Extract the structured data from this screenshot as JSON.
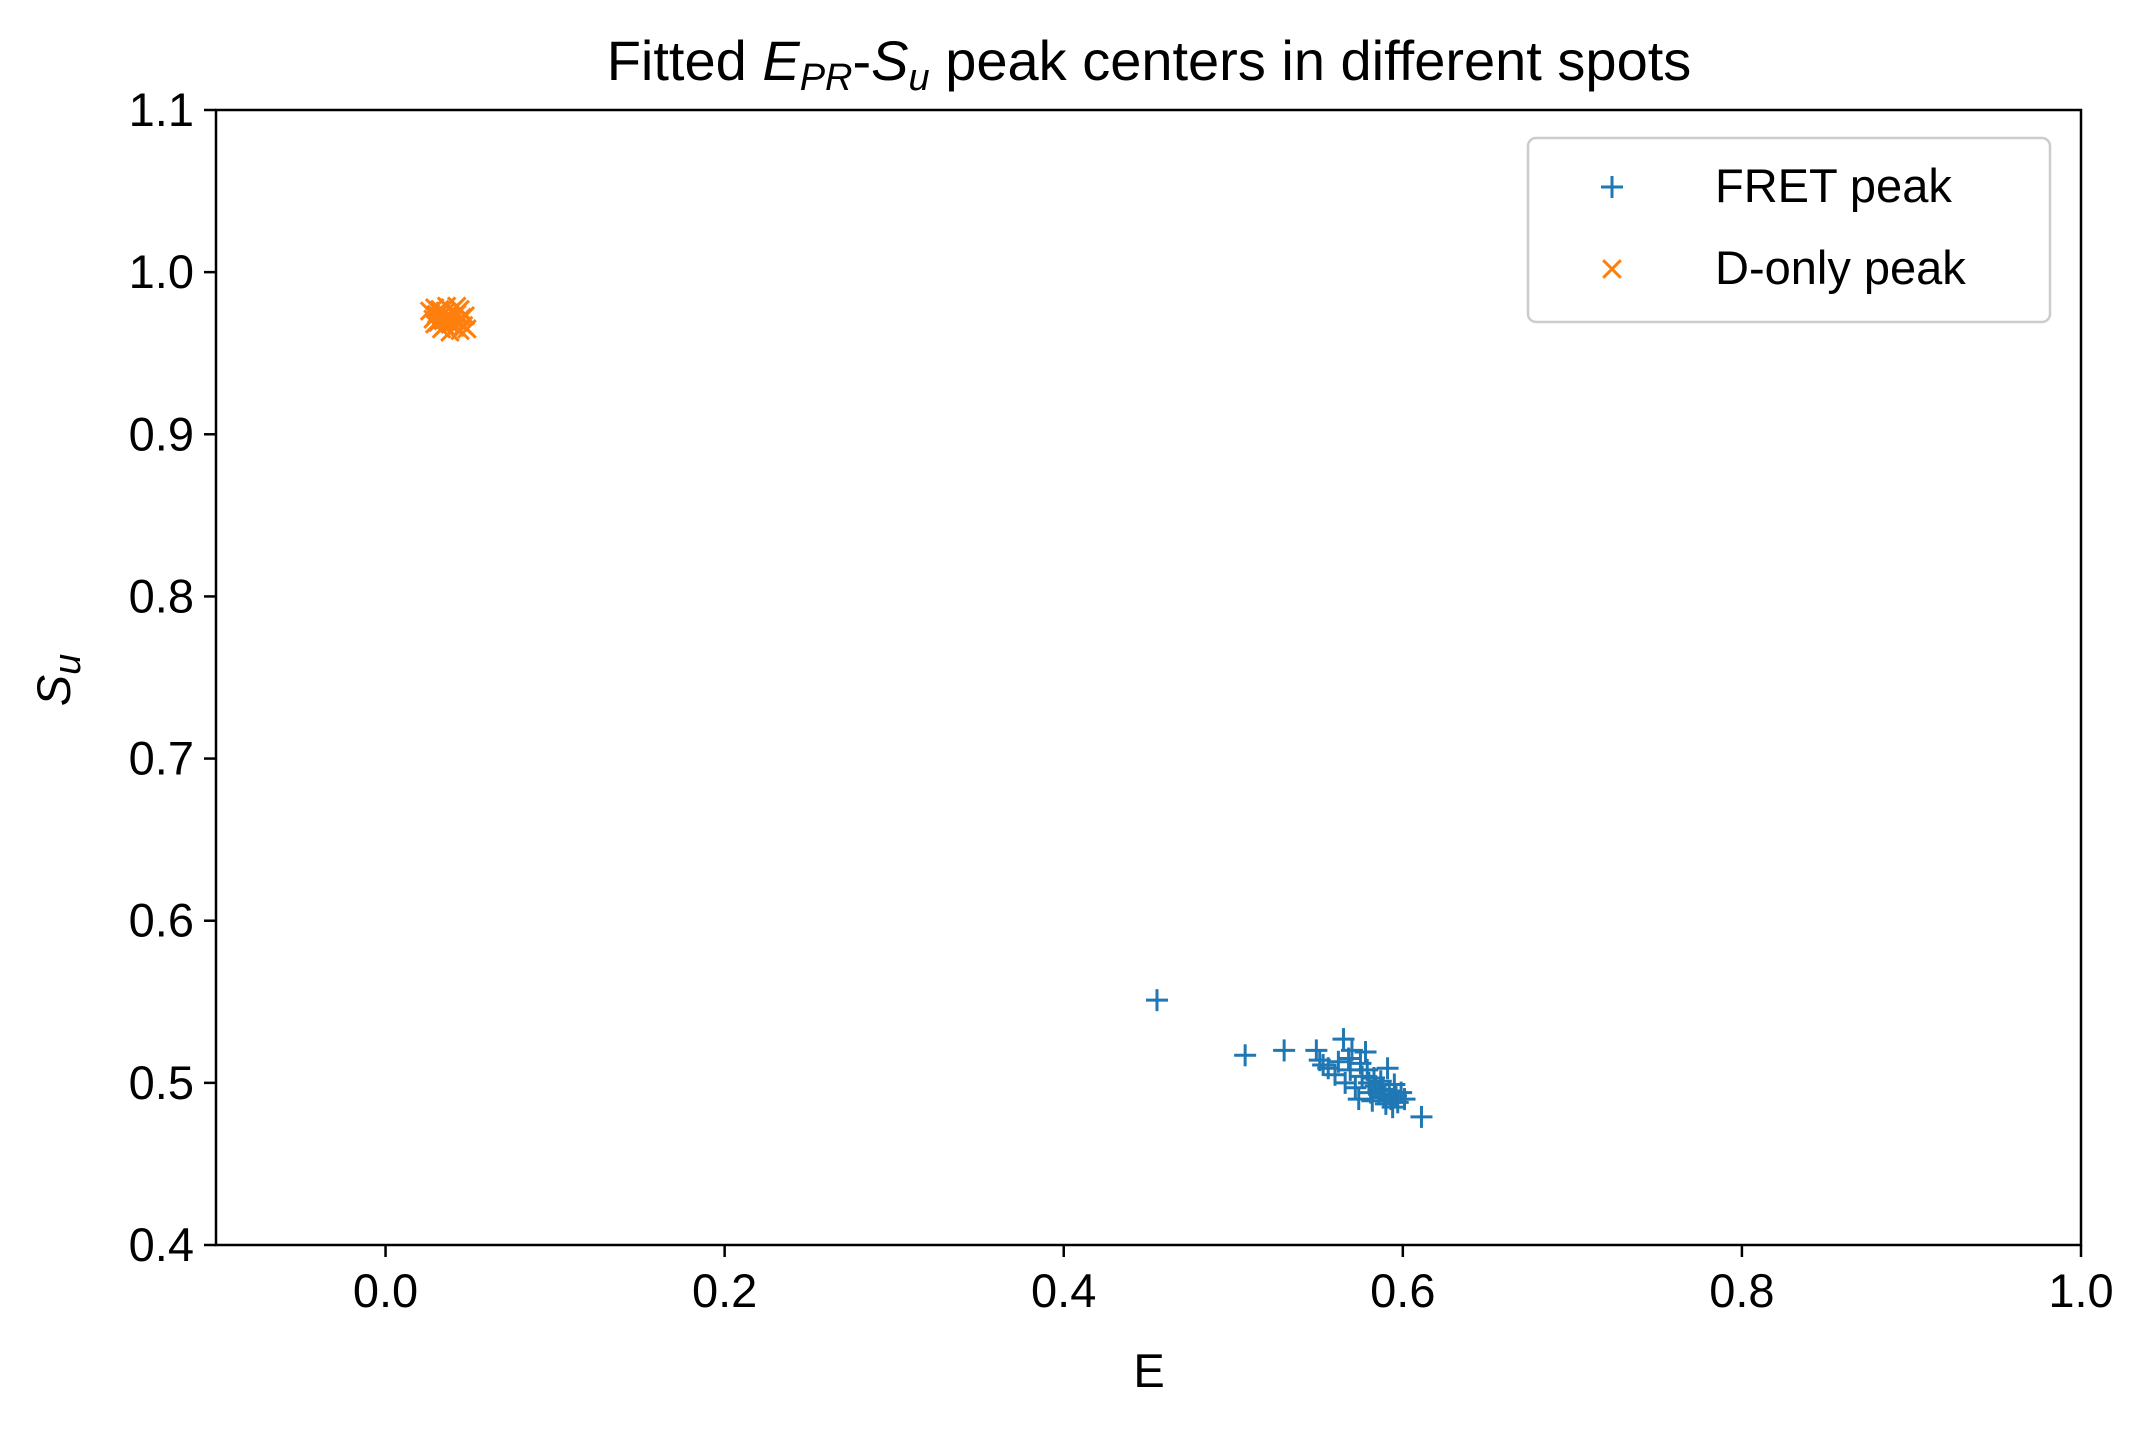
{
  "chart_data": {
    "type": "scatter",
    "title": {
      "prefix": "Fitted ",
      "e_symbol": "E",
      "e_subscript": "PR",
      "dash": "-",
      "s_symbol": "S",
      "s_subscript": "u",
      "suffix": " peak centers in different spots"
    },
    "xlabel": "E",
    "ylabel": {
      "symbol": "S",
      "subscript": "u"
    },
    "xlim": [
      -0.1,
      1.0
    ],
    "ylim": [
      0.4,
      1.1
    ],
    "xticks": [
      0.0,
      0.2,
      0.4,
      0.6,
      0.8,
      1.0
    ],
    "xtick_labels": [
      "0.0",
      "0.2",
      "0.4",
      "0.6",
      "0.8",
      "1.0"
    ],
    "yticks": [
      0.4,
      0.5,
      0.6,
      0.7,
      0.8,
      0.9,
      1.0,
      1.1
    ],
    "ytick_labels": [
      "0.4",
      "0.5",
      "0.6",
      "0.7",
      "0.8",
      "0.9",
      "1.0",
      "1.1"
    ],
    "grid": false,
    "legend_position": "top-right",
    "series": [
      {
        "name": "FRET peak",
        "marker": "plus",
        "color": "#1f77b4",
        "points": [
          [
            0.455,
            0.551
          ],
          [
            0.507,
            0.517
          ],
          [
            0.53,
            0.52
          ],
          [
            0.549,
            0.52
          ],
          [
            0.551,
            0.514
          ],
          [
            0.553,
            0.511
          ],
          [
            0.556,
            0.509
          ],
          [
            0.56,
            0.505
          ],
          [
            0.562,
            0.513
          ],
          [
            0.565,
            0.527
          ],
          [
            0.566,
            0.5
          ],
          [
            0.569,
            0.508
          ],
          [
            0.57,
            0.52
          ],
          [
            0.572,
            0.497
          ],
          [
            0.574,
            0.49
          ],
          [
            0.576,
            0.504
          ],
          [
            0.578,
            0.519
          ],
          [
            0.579,
            0.508
          ],
          [
            0.58,
            0.5
          ],
          [
            0.581,
            0.494
          ],
          [
            0.582,
            0.489
          ],
          [
            0.583,
            0.503
          ],
          [
            0.584,
            0.498
          ],
          [
            0.586,
            0.493
          ],
          [
            0.587,
            0.501
          ],
          [
            0.588,
            0.496
          ],
          [
            0.589,
            0.491
          ],
          [
            0.59,
            0.487
          ],
          [
            0.591,
            0.509
          ],
          [
            0.592,
            0.495
          ],
          [
            0.593,
            0.49
          ],
          [
            0.594,
            0.485
          ],
          [
            0.595,
            0.499
          ],
          [
            0.596,
            0.492
          ],
          [
            0.597,
            0.488
          ],
          [
            0.599,
            0.494
          ],
          [
            0.601,
            0.49
          ],
          [
            0.611,
            0.479
          ],
          [
            0.568,
            0.515
          ],
          [
            0.575,
            0.512
          ]
        ]
      },
      {
        "name": "D-only peak",
        "marker": "x",
        "color": "#ff7f0e",
        "points": [
          [
            0.026,
            0.976
          ],
          [
            0.028,
            0.971
          ],
          [
            0.029,
            0.978
          ],
          [
            0.03,
            0.974
          ],
          [
            0.031,
            0.969
          ],
          [
            0.032,
            0.977
          ],
          [
            0.033,
            0.973
          ],
          [
            0.034,
            0.97
          ],
          [
            0.035,
            0.975
          ],
          [
            0.035,
            0.967
          ],
          [
            0.036,
            0.979
          ],
          [
            0.037,
            0.972
          ],
          [
            0.038,
            0.968
          ],
          [
            0.039,
            0.976
          ],
          [
            0.04,
            0.971
          ],
          [
            0.041,
            0.966
          ],
          [
            0.042,
            0.974
          ],
          [
            0.043,
            0.969
          ],
          [
            0.044,
            0.977
          ],
          [
            0.045,
            0.972
          ],
          [
            0.046,
            0.967
          ],
          [
            0.047,
            0.973
          ],
          [
            0.048,
            0.965
          ],
          [
            0.033,
            0.965
          ],
          [
            0.029,
            0.968
          ],
          [
            0.042,
            0.979
          ],
          [
            0.038,
            0.963
          ],
          [
            0.044,
            0.964
          ]
        ]
      }
    ]
  }
}
